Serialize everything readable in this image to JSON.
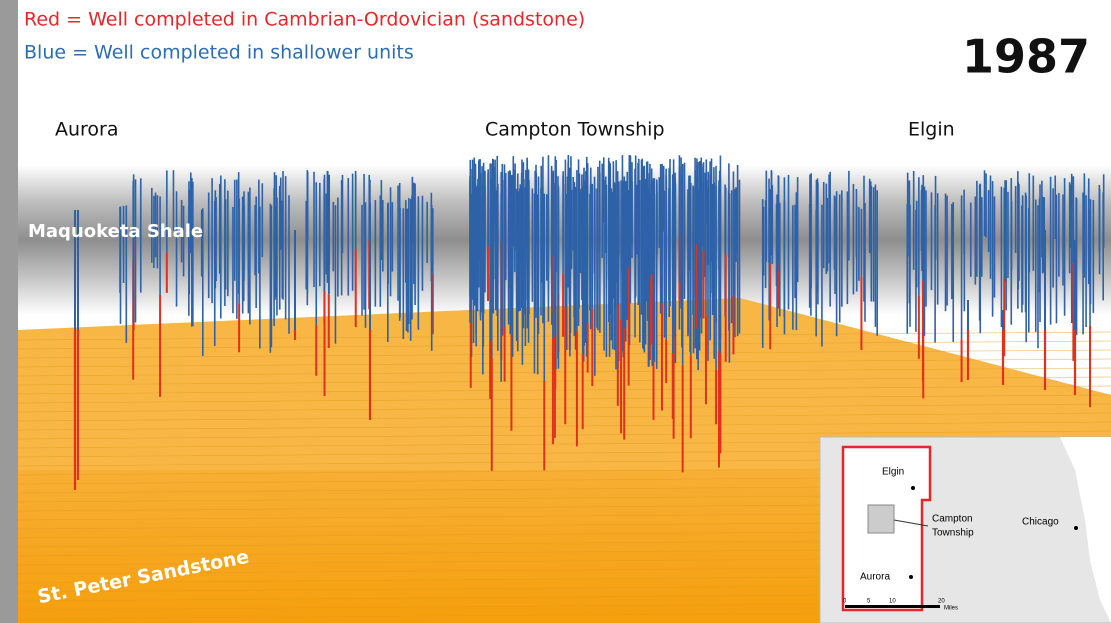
{
  "legend": {
    "red": "Red = Well completed in Cambrian-Ordovician (sandstone)",
    "blue": "Blue = Well completed in shallower units"
  },
  "year": "1987",
  "locations": [
    "Aurora",
    "Campton Township",
    "Elgin"
  ],
  "layers": [
    "Maquoketa Shale",
    "St. Peter Sandstone"
  ],
  "inset": {
    "labels": [
      "Elgin",
      "Campton",
      "Township",
      "Chicago",
      "Aurora"
    ],
    "scale": [
      "0",
      "5",
      "10",
      "20",
      "Miles"
    ]
  }
}
